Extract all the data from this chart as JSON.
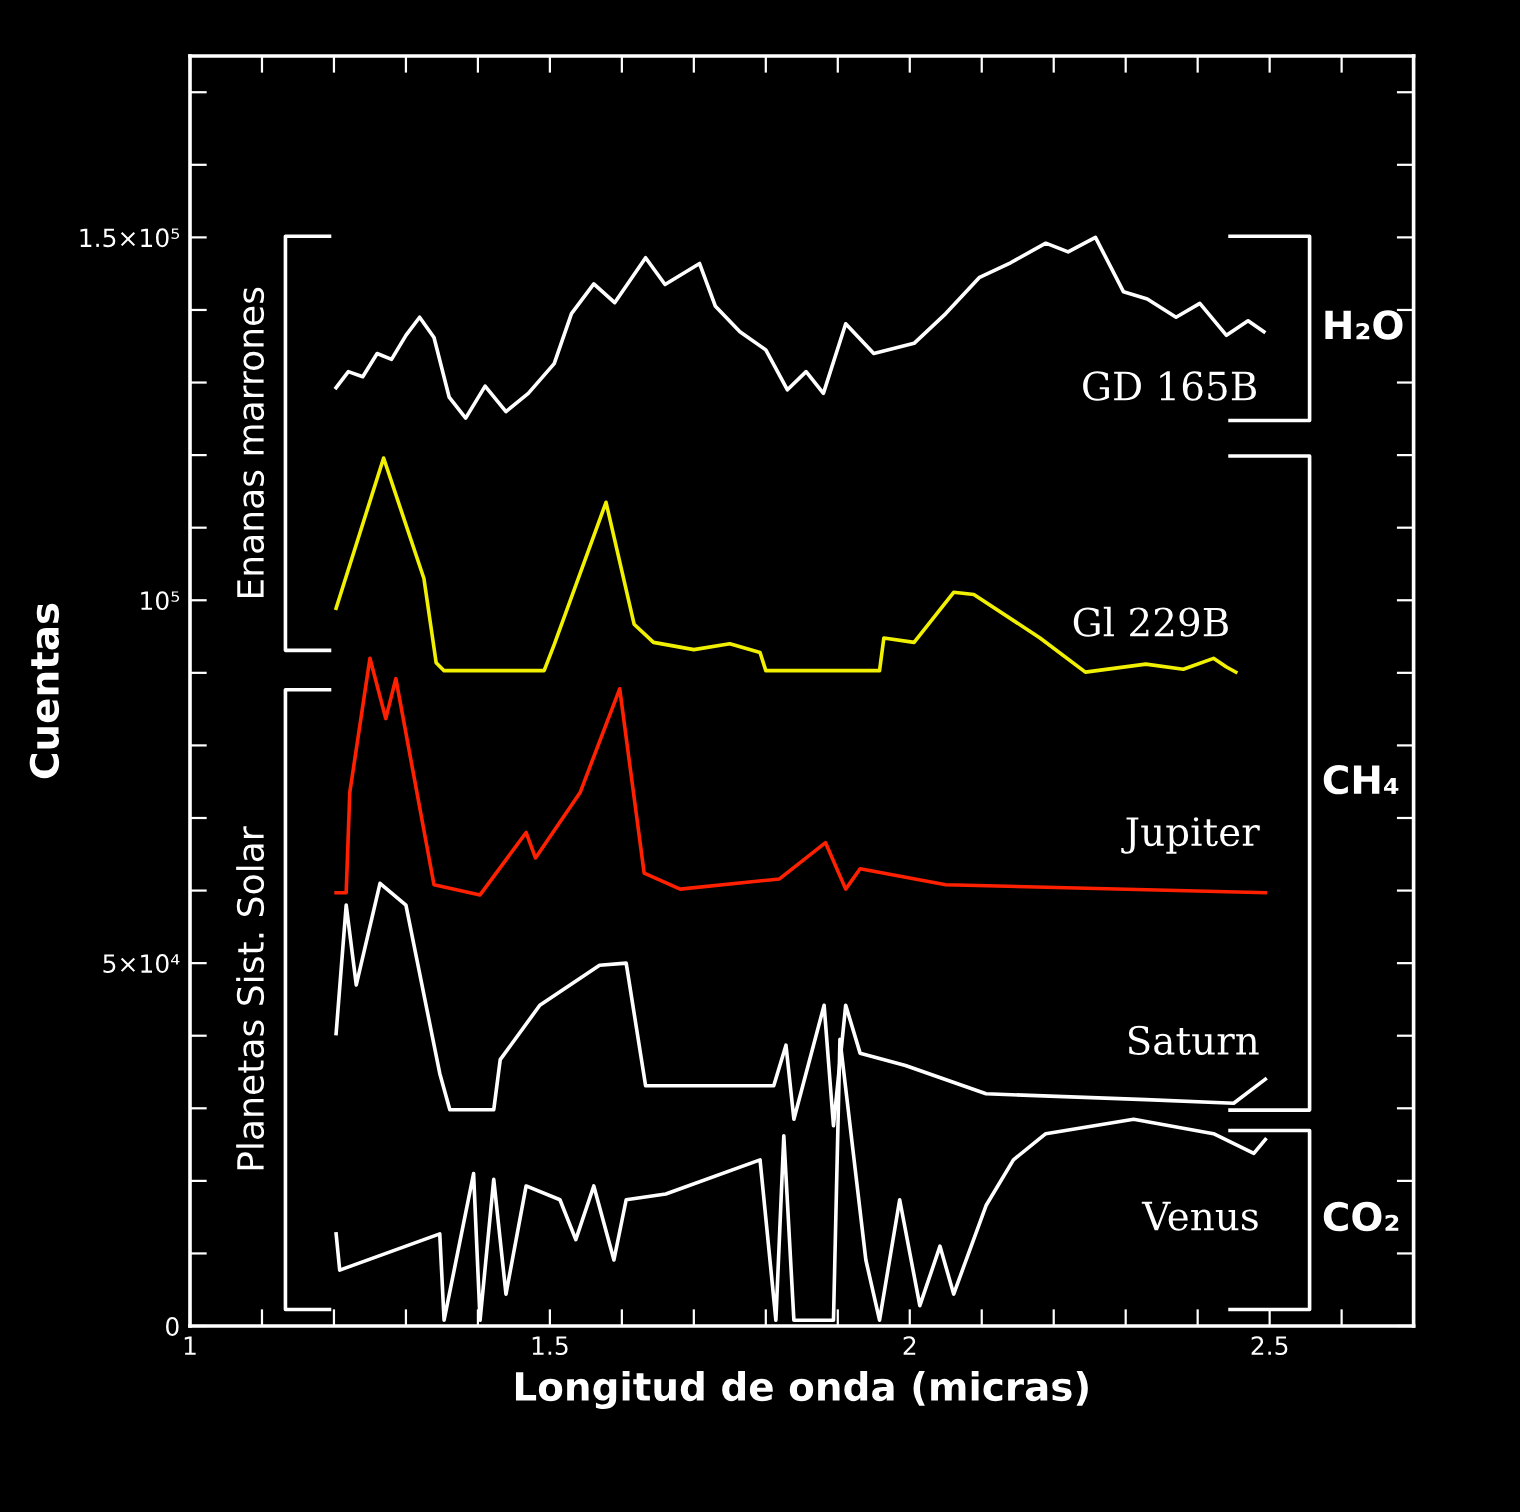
{
  "chart_data": {
    "type": "line",
    "xlabel": "Longitud de onda (micras)",
    "ylabel": "Cuentas",
    "xlim": [
      1,
      2.7
    ],
    "ylim": [
      0,
      175000
    ],
    "xticks": [
      1,
      {
        "value": 1.1,
        "label": null
      },
      {
        "value": 1.2,
        "label": null
      },
      {
        "value": 1.3,
        "label": null
      },
      {
        "value": 1.4,
        "label": null
      },
      1.5,
      {
        "value": 1.6,
        "label": null
      },
      {
        "value": 1.7,
        "label": null
      },
      {
        "value": 1.8,
        "label": null
      },
      {
        "value": 1.9,
        "label": null
      },
      2,
      {
        "value": 2.1,
        "label": null
      },
      {
        "value": 2.2,
        "label": null
      },
      {
        "value": 2.3,
        "label": null
      },
      {
        "value": 2.4,
        "label": null
      },
      2.5,
      {
        "value": 2.6,
        "label": null
      }
    ],
    "yticks": [
      0,
      {
        "value": 10000,
        "label": null
      },
      {
        "value": 20000,
        "label": null
      },
      {
        "value": 30000,
        "label": null
      },
      {
        "value": 40000,
        "label": null
      },
      {
        "value": 50000,
        "label": "5×10⁴"
      },
      {
        "value": 60000,
        "label": null
      },
      {
        "value": 70000,
        "label": null
      },
      {
        "value": 80000,
        "label": null
      },
      {
        "value": 90000,
        "label": null
      },
      {
        "value": 100000,
        "label": "10⁵"
      },
      {
        "value": 110000,
        "label": null
      },
      {
        "value": 120000,
        "label": null
      },
      {
        "value": 130000,
        "label": null
      },
      {
        "value": 140000,
        "label": null
      },
      {
        "value": 150000,
        "label": "1.5×10⁵"
      },
      {
        "value": 160000,
        "label": null
      },
      {
        "value": 170000,
        "label": null
      }
    ],
    "grid": false,
    "legend": false,
    "marker": "none",
    "line_style": "solid",
    "annotations": [
      "Enanas marrones",
      "Planetas Sist. Solar",
      "H₂O",
      "CH₄",
      "CO₂"
    ],
    "series": [
      {
        "name": "GD 165B",
        "color": "#ffffff",
        "x": [
          1.203,
          1.22,
          1.24,
          1.26,
          1.28,
          1.3,
          1.319,
          1.339,
          1.36,
          1.383,
          1.41,
          1.439,
          1.47,
          1.506,
          1.53,
          1.561,
          1.59,
          1.633,
          1.66,
          1.708,
          1.73,
          1.764,
          1.8,
          1.83,
          1.856,
          1.88,
          1.911,
          1.95,
          2.006,
          2.05,
          2.097,
          2.14,
          2.189,
          2.22,
          2.258,
          2.297,
          2.33,
          2.37,
          2.403,
          2.44,
          2.47,
          2.492
        ],
        "values": [
          129300,
          131500,
          130800,
          134000,
          133200,
          136500,
          139000,
          136200,
          128000,
          125100,
          129500,
          126000,
          128500,
          132600,
          139500,
          143600,
          141000,
          147200,
          143500,
          146400,
          140500,
          137000,
          134500,
          129000,
          131500,
          128500,
          138100,
          134000,
          135400,
          139500,
          144500,
          146500,
          149200,
          148000,
          150000,
          142500,
          141500,
          139000,
          140900,
          136500,
          138500,
          137000
        ]
      },
      {
        "name": "Gl 229B",
        "color": "#f0f000",
        "x": [
          1.203,
          1.269,
          1.325,
          1.342,
          1.353,
          1.492,
          1.506,
          1.578,
          1.617,
          1.644,
          1.7,
          1.75,
          1.792,
          1.8,
          1.958,
          1.964,
          2.006,
          2.061,
          2.089,
          2.181,
          2.244,
          2.328,
          2.38,
          2.422,
          2.44,
          2.453
        ],
        "values": [
          98900,
          119600,
          103000,
          91400,
          90300,
          90300,
          93900,
          113500,
          96700,
          94200,
          93200,
          94000,
          92800,
          90300,
          90300,
          94800,
          94200,
          101100,
          100800,
          94800,
          90100,
          91200,
          90500,
          92000,
          90800,
          90100
        ]
      },
      {
        "name": "Jupiter",
        "color": "#ff2000",
        "x": [
          1.203,
          1.217,
          1.222,
          1.25,
          1.272,
          1.286,
          1.339,
          1.403,
          1.467,
          1.48,
          1.542,
          1.597,
          1.631,
          1.681,
          1.819,
          1.883,
          1.911,
          1.931,
          2.05,
          2.494
        ],
        "values": [
          59700,
          59700,
          73500,
          92000,
          83700,
          89200,
          60800,
          59400,
          68000,
          64500,
          73500,
          87800,
          62400,
          60200,
          61600,
          66600,
          60200,
          63000,
          60800,
          59700
        ]
      },
      {
        "name": "Saturn",
        "color": "#ffffff",
        "x": [
          1.203,
          1.217,
          1.231,
          1.264,
          1.3,
          1.347,
          1.361,
          1.422,
          1.431,
          1.486,
          1.569,
          1.606,
          1.633,
          1.681,
          1.811,
          1.828,
          1.839,
          1.881,
          1.894,
          1.911,
          1.931,
          1.994,
          2.106,
          2.328,
          2.45,
          2.494
        ],
        "values": [
          40300,
          58000,
          47000,
          61000,
          58000,
          34800,
          29800,
          29800,
          36700,
          44200,
          49700,
          50000,
          33100,
          33100,
          33100,
          38700,
          28500,
          44200,
          27600,
          44200,
          37600,
          35900,
          32000,
          31200,
          30700,
          34000
        ]
      },
      {
        "name": "Venus",
        "color": "#ffffff",
        "x": [
          1.203,
          1.208,
          1.347,
          1.353,
          1.394,
          1.403,
          1.422,
          1.439,
          1.467,
          1.514,
          1.536,
          1.561,
          1.589,
          1.606,
          1.661,
          1.792,
          1.814,
          1.825,
          1.839,
          1.894,
          1.903,
          1.939,
          1.958,
          1.986,
          2.014,
          2.042,
          2.061,
          2.106,
          2.144,
          2.189,
          2.311,
          2.422,
          2.478,
          2.494
        ],
        "values": [
          12700,
          7700,
          12700,
          800,
          21000,
          800,
          20200,
          4400,
          19300,
          17400,
          11900,
          19300,
          9100,
          17400,
          18200,
          22900,
          800,
          26200,
          800,
          800,
          39500,
          9100,
          800,
          17400,
          2800,
          11000,
          4400,
          16600,
          22900,
          26500,
          28500,
          26500,
          23800,
          25700
        ]
      }
    ]
  }
}
